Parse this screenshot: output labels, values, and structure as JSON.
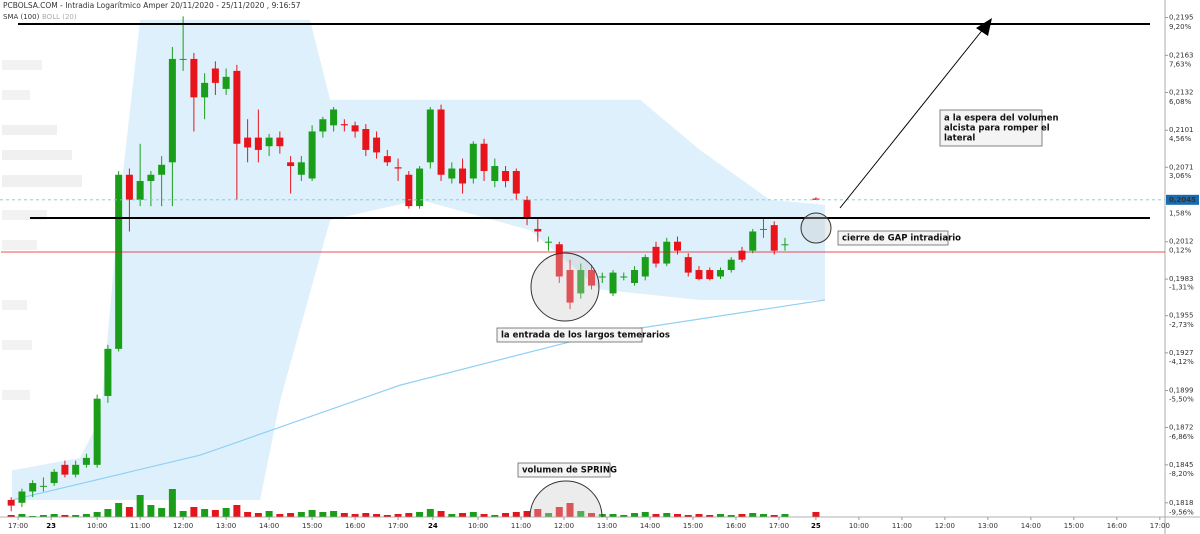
{
  "chart_data": {
    "type": "candlestick",
    "title": "PCBOLSA.COM - Intradia Logarítmico Amper 20/11/2020 - 25/11/2020 , 9:16:57",
    "log_scale": true,
    "grid": false,
    "up_color": "#1a9e1a",
    "down_color": "#e8141c",
    "xlim": [
      7.74,
      34.84
    ],
    "xticks": [
      {
        "value": 8.16,
        "label": "17:00"
      },
      {
        "value": 8.93,
        "label": "23"
      },
      {
        "value": 10,
        "label": "10:00"
      },
      {
        "value": 11,
        "label": "11:00"
      },
      {
        "value": 12,
        "label": "12:00"
      },
      {
        "value": 13,
        "label": "13:00"
      },
      {
        "value": 14,
        "label": "14:00"
      },
      {
        "value": 15,
        "label": "15:00"
      },
      {
        "value": 16,
        "label": "16:00"
      },
      {
        "value": 17,
        "label": "17:00"
      },
      {
        "value": 17.81,
        "label": "24"
      },
      {
        "value": 18.86,
        "label": "10:00"
      },
      {
        "value": 19.86,
        "label": "11:00"
      },
      {
        "value": 20.86,
        "label": "12:00"
      },
      {
        "value": 21.86,
        "label": "13:00"
      },
      {
        "value": 22.86,
        "label": "14:00"
      },
      {
        "value": 23.86,
        "label": "15:00"
      },
      {
        "value": 24.86,
        "label": "16:00"
      },
      {
        "value": 25.86,
        "label": "17:00"
      },
      {
        "value": 26.72,
        "label": "25"
      },
      {
        "value": 27.72,
        "label": "10:00"
      },
      {
        "value": 28.72,
        "label": "11:00"
      },
      {
        "value": 29.72,
        "label": "12:00"
      },
      {
        "value": 30.72,
        "label": "13:00"
      },
      {
        "value": 31.72,
        "label": "14:00"
      },
      {
        "value": 32.72,
        "label": "15:00"
      },
      {
        "value": 33.72,
        "label": "16:00"
      },
      {
        "value": 34.72,
        "label": "17:00"
      }
    ],
    "ylim": [
      0.1808,
      0.221
    ],
    "yticks": [
      {
        "value": 0.2195,
        "label": "0,2195"
      },
      {
        "value": 0.2163,
        "label": "0,2163"
      },
      {
        "value": 0.2132,
        "label": "0,2132"
      },
      {
        "value": 0.2101,
        "label": "0,2101"
      },
      {
        "value": 0.2071,
        "label": "0,2071"
      },
      {
        "value": 0.2012,
        "label": "0,2012"
      },
      {
        "value": 0.1983,
        "label": "0,1983"
      },
      {
        "value": 0.1955,
        "label": "0,1955"
      },
      {
        "value": 0.1927,
        "label": "0,1927"
      },
      {
        "value": 0.1899,
        "label": "0,1899"
      },
      {
        "value": 0.1872,
        "label": "0,1872"
      },
      {
        "value": 0.1845,
        "label": "0,1845"
      },
      {
        "value": 0.1818,
        "label": "0,1818"
      }
    ],
    "y2lim": [
      -10.03,
      9.97
    ],
    "y2ticks": [
      {
        "value": 9.2,
        "label": "9,20%"
      },
      {
        "value": 7.63,
        "label": "7,63%"
      },
      {
        "value": 6.08,
        "label": "6,08%"
      },
      {
        "value": 4.56,
        "label": "4,56%"
      },
      {
        "value": 3.06,
        "label": "3,06%"
      },
      {
        "value": 1.58,
        "label": "1,58%"
      },
      {
        "value": 0.12,
        "label": "0,12%"
      },
      {
        "value": -1.31,
        "label": "-1,31%"
      },
      {
        "value": -2.73,
        "label": "-2,73%"
      },
      {
        "value": -4.12,
        "label": "-4,12%"
      },
      {
        "value": -5.5,
        "label": "-5,50%"
      },
      {
        "value": -6.86,
        "label": "-6,86%"
      },
      {
        "value": -8.2,
        "label": "-8,20%"
      },
      {
        "value": -9.56,
        "label": "-9,56%"
      }
    ],
    "last_price": {
      "value": 0.2045,
      "label": "0,2045"
    },
    "candles": {
      "x": [
        8,
        8.25,
        8.5,
        8.75,
        9,
        9.25,
        9.5,
        9.75,
        10,
        10.25,
        10.5,
        10.75,
        11,
        11.25,
        11.5,
        11.75,
        12,
        12.25,
        12.5,
        12.75,
        13,
        13.25,
        13.5,
        13.75,
        14,
        14.25,
        14.5,
        14.75,
        15,
        15.25,
        15.5,
        15.75,
        16,
        16.25,
        16.5,
        16.75,
        17,
        17.25,
        17.5,
        17.75,
        18,
        18.25,
        18.5,
        18.75,
        19,
        19.25,
        19.5,
        19.75,
        20,
        20.25,
        20.5,
        20.75,
        21,
        21.25,
        21.5,
        21.75,
        22,
        22.25,
        22.5,
        22.75,
        23,
        23.25,
        23.5,
        23.75,
        24,
        24.25,
        24.5,
        24.75,
        25,
        25.25,
        25.5,
        25.75,
        26,
        26.72
      ],
      "open": [
        0.182,
        0.1818,
        0.1826,
        0.183,
        0.1832,
        0.1845,
        0.1838,
        0.1845,
        0.1845,
        0.1895,
        0.193,
        0.2065,
        0.2045,
        0.206,
        0.2065,
        0.2075,
        0.216,
        0.216,
        0.2128,
        0.2152,
        0.2135,
        0.215,
        0.2095,
        0.2095,
        0.2088,
        0.2095,
        0.2075,
        0.2065,
        0.2062,
        0.21,
        0.2105,
        0.2106,
        0.2105,
        0.2102,
        0.2095,
        0.208,
        0.2071,
        0.2065,
        0.204,
        0.2075,
        0.2118,
        0.2062,
        0.207,
        0.2062,
        0.209,
        0.206,
        0.2068,
        0.2068,
        0.2045,
        0.2022,
        0.2012,
        0.201,
        0.199,
        0.1972,
        0.199,
        0.1985,
        0.1972,
        0.1985,
        0.198,
        0.1985,
        0.2008,
        0.1995,
        0.2012,
        0.2,
        0.199,
        0.199,
        0.1985,
        0.199,
        0.2005,
        0.2005,
        0.2022,
        0.2025,
        0.201,
        0.2046
      ],
      "high": [
        0.1822,
        0.1828,
        0.1834,
        0.1836,
        0.1842,
        0.1848,
        0.1848,
        0.1853,
        0.1896,
        0.1933,
        0.2068,
        0.207,
        0.209,
        0.2068,
        0.208,
        0.217,
        0.2196,
        0.2165,
        0.2148,
        0.2158,
        0.2152,
        0.2155,
        0.211,
        0.2118,
        0.2098,
        0.21,
        0.208,
        0.208,
        0.2105,
        0.2112,
        0.212,
        0.211,
        0.2108,
        0.2106,
        0.21,
        0.2085,
        0.2078,
        0.2068,
        0.2072,
        0.212,
        0.2122,
        0.2075,
        0.2078,
        0.2092,
        0.2094,
        0.2078,
        0.2072,
        0.207,
        0.2048,
        0.203,
        0.2016,
        0.2012,
        0.1998,
        0.1995,
        0.1994,
        0.1988,
        0.199,
        0.1988,
        0.1993,
        0.2002,
        0.2012,
        0.2015,
        0.2016,
        0.2003,
        0.1993,
        0.1992,
        0.1992,
        0.2,
        0.2008,
        0.2022,
        0.203,
        0.2028,
        0.2015,
        0.2047
      ],
      "low": [
        0.1812,
        0.1815,
        0.1822,
        0.1826,
        0.183,
        0.1836,
        0.1836,
        0.1843,
        0.1843,
        0.189,
        0.1928,
        0.202,
        0.204,
        0.204,
        0.204,
        0.204,
        0.215,
        0.21,
        0.211,
        0.213,
        0.213,
        0.2045,
        0.2075,
        0.2075,
        0.208,
        0.2082,
        0.205,
        0.206,
        0.206,
        0.2095,
        0.21,
        0.21,
        0.2095,
        0.208,
        0.2078,
        0.2072,
        0.206,
        0.2038,
        0.2038,
        0.207,
        0.206,
        0.2058,
        0.205,
        0.2058,
        0.206,
        0.2055,
        0.2055,
        0.2045,
        0.2025,
        0.2012,
        0.2005,
        0.198,
        0.196,
        0.1968,
        0.1975,
        0.198,
        0.197,
        0.1982,
        0.1978,
        0.1982,
        0.1992,
        0.1993,
        0.2002,
        0.1985,
        0.1982,
        0.1982,
        0.1983,
        0.1988,
        0.1996,
        0.2003,
        0.2015,
        0.2002,
        0.2005,
        0.2045
      ],
      "close": [
        0.1816,
        0.1826,
        0.1832,
        0.183,
        0.184,
        0.1838,
        0.1845,
        0.185,
        0.1893,
        0.193,
        0.2065,
        0.2045,
        0.206,
        0.2065,
        0.2073,
        0.216,
        0.216,
        0.2128,
        0.214,
        0.214,
        0.2145,
        0.209,
        0.2087,
        0.2085,
        0.2095,
        0.2088,
        0.2072,
        0.2075,
        0.21,
        0.211,
        0.2118,
        0.2105,
        0.21,
        0.2085,
        0.2083,
        0.2075,
        0.207,
        0.204,
        0.207,
        0.2118,
        0.2065,
        0.207,
        0.2058,
        0.209,
        0.2068,
        0.2072,
        0.206,
        0.205,
        0.203,
        0.202,
        0.2012,
        0.1985,
        0.1965,
        0.199,
        0.1978,
        0.1985,
        0.1988,
        0.1985,
        0.199,
        0.2,
        0.1995,
        0.2012,
        0.2005,
        0.1988,
        0.1983,
        0.1983,
        0.199,
        0.1998,
        0.1998,
        0.202,
        0.2022,
        0.2005,
        0.201,
        0.2045
      ],
      "volume": [
        2,
        3,
        1,
        2,
        3,
        2,
        2,
        3,
        5,
        8,
        14,
        10,
        22,
        12,
        9,
        28,
        6,
        10,
        8,
        7,
        9,
        12,
        5,
        4,
        6,
        3,
        4,
        5,
        7,
        5,
        6,
        4,
        3,
        4,
        3,
        2,
        3,
        4,
        5,
        8,
        6,
        3,
        4,
        5,
        3,
        2,
        4,
        5,
        6,
        8,
        4,
        10,
        14,
        6,
        4,
        3,
        3,
        2,
        4,
        5,
        3,
        4,
        3,
        2,
        3,
        2,
        3,
        2,
        3,
        4,
        3,
        2,
        3,
        5
      ]
    },
    "volume_lim": [
      0,
      55
    ],
    "bollinger": {
      "name": "BOLL (20)",
      "color": "#d6ecfa",
      "upper": {
        "x": [
          8.02,
          9.6,
          10.07,
          10.53,
          11.0,
          14.95,
          15.42,
          20.77,
          22.63,
          24.02,
          25.65,
          26.93
        ],
        "values": [
          0.1841,
          0.185,
          0.1878,
          0.2045,
          0.2193,
          0.2193,
          0.2126,
          0.2126,
          0.2126,
          0.2085,
          0.2045,
          0.2041
        ]
      },
      "lower": {
        "x": [
          8.02,
          13.79,
          14.26,
          15.42,
          17.51,
          20.07,
          21.7,
          24.02,
          26.93
        ],
        "values": [
          0.182,
          0.182,
          0.1892,
          0.2029,
          0.2045,
          0.2021,
          0.1975,
          0.1967,
          0.1967
        ]
      }
    },
    "sma": {
      "name": "SMA (100)",
      "color": "#8fd0f5",
      "x": [
        8.02,
        12.4,
        17.05,
        21.7,
        26.93
      ],
      "values": [
        0.182,
        0.1852,
        0.1903,
        0.1941,
        0.1967
      ]
    },
    "annotations": {
      "wait": [
        "a la espera del volumen",
        "alcista para romper el",
        "lateral"
      ],
      "gap": "cierre de GAP intradiario",
      "entry": "la entrada de los largos temerarios",
      "spring": "volumen de SPRING"
    }
  }
}
